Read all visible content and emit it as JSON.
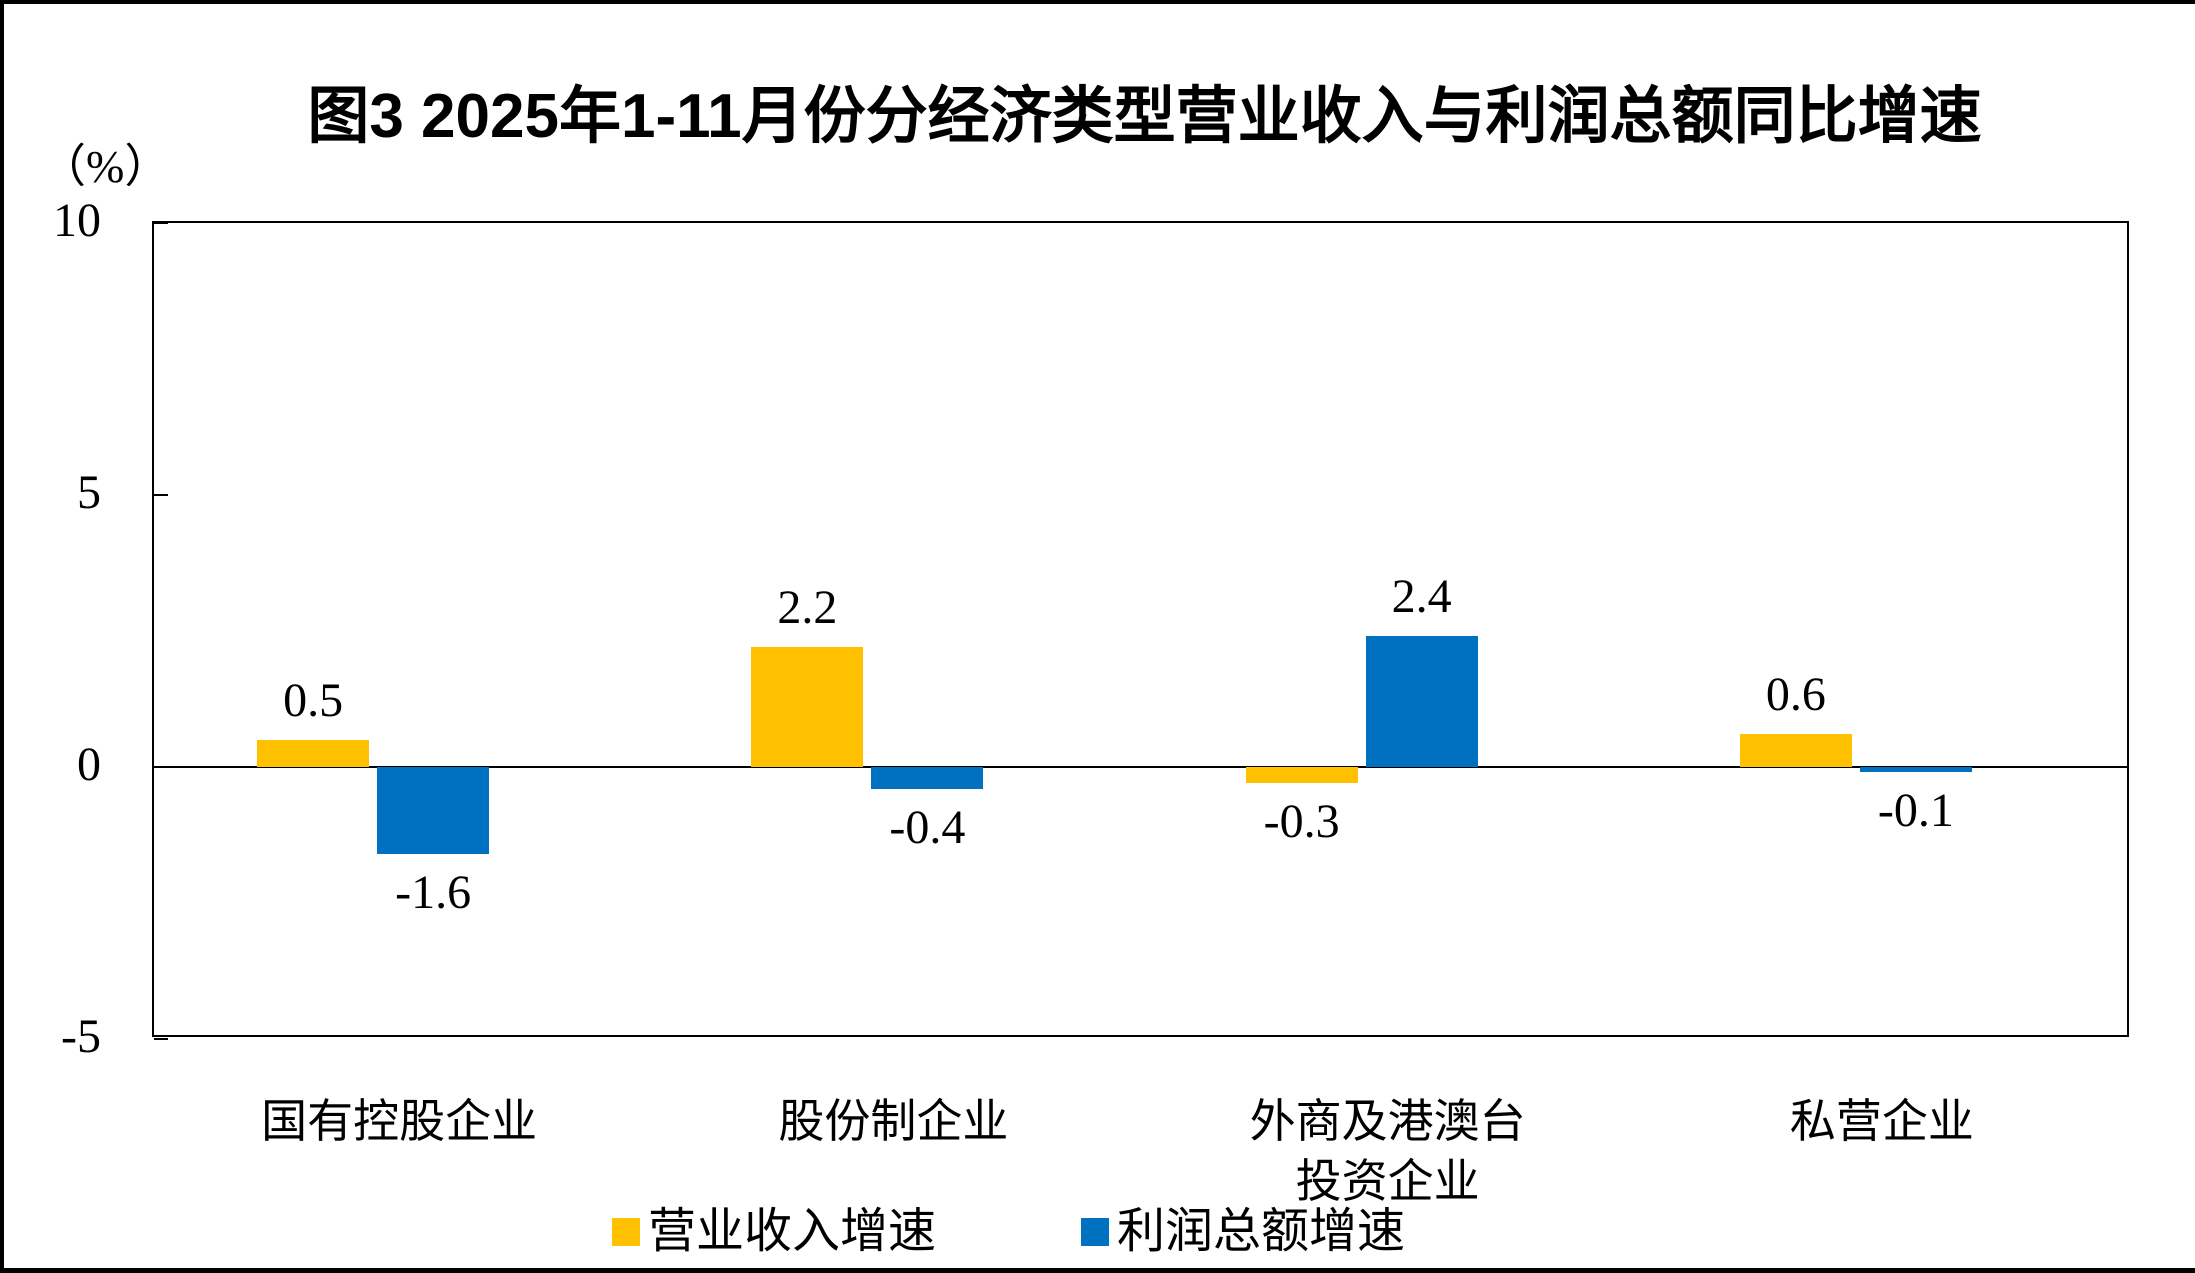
{
  "figure": {
    "title": "图3  2025年1-11月份分经济类型营业收入与利润总额同比增速",
    "unit_label": "（%）"
  },
  "chart_data": {
    "type": "bar",
    "title": "图3  2025年1-11月份分经济类型营业收入与利润总额同比增速",
    "unit": "%",
    "categories": [
      "国有控股企业",
      "股份制企业",
      "外商及港澳台投资企业",
      "私营企业"
    ],
    "category_label_lines": [
      [
        "国有控股企业"
      ],
      [
        "股份制企业"
      ],
      [
        "外商及港澳台",
        "投资企业"
      ],
      [
        "私营企业"
      ]
    ],
    "series": [
      {
        "name": "营业收入增速",
        "color": "#FFC000",
        "values": [
          0.5,
          2.2,
          -0.3,
          0.6
        ]
      },
      {
        "name": "利润总额增速",
        "color": "#0070C0",
        "values": [
          -1.6,
          -0.4,
          2.4,
          -0.1
        ]
      }
    ],
    "data_labels": [
      [
        "0.5",
        "2.2",
        "-0.3",
        "0.6"
      ],
      [
        "-1.6",
        "-0.4",
        "2.4",
        "-0.1"
      ]
    ],
    "ylim": [
      -5,
      10
    ],
    "yticks": [
      10,
      5,
      0,
      -5
    ],
    "ytick_labels": [
      "10",
      "5",
      "0",
      "-5"
    ],
    "grid": false,
    "legend_position": "bottom",
    "axis_color": "#000000",
    "text_color": "#000000",
    "background_color": "#ffffff"
  }
}
